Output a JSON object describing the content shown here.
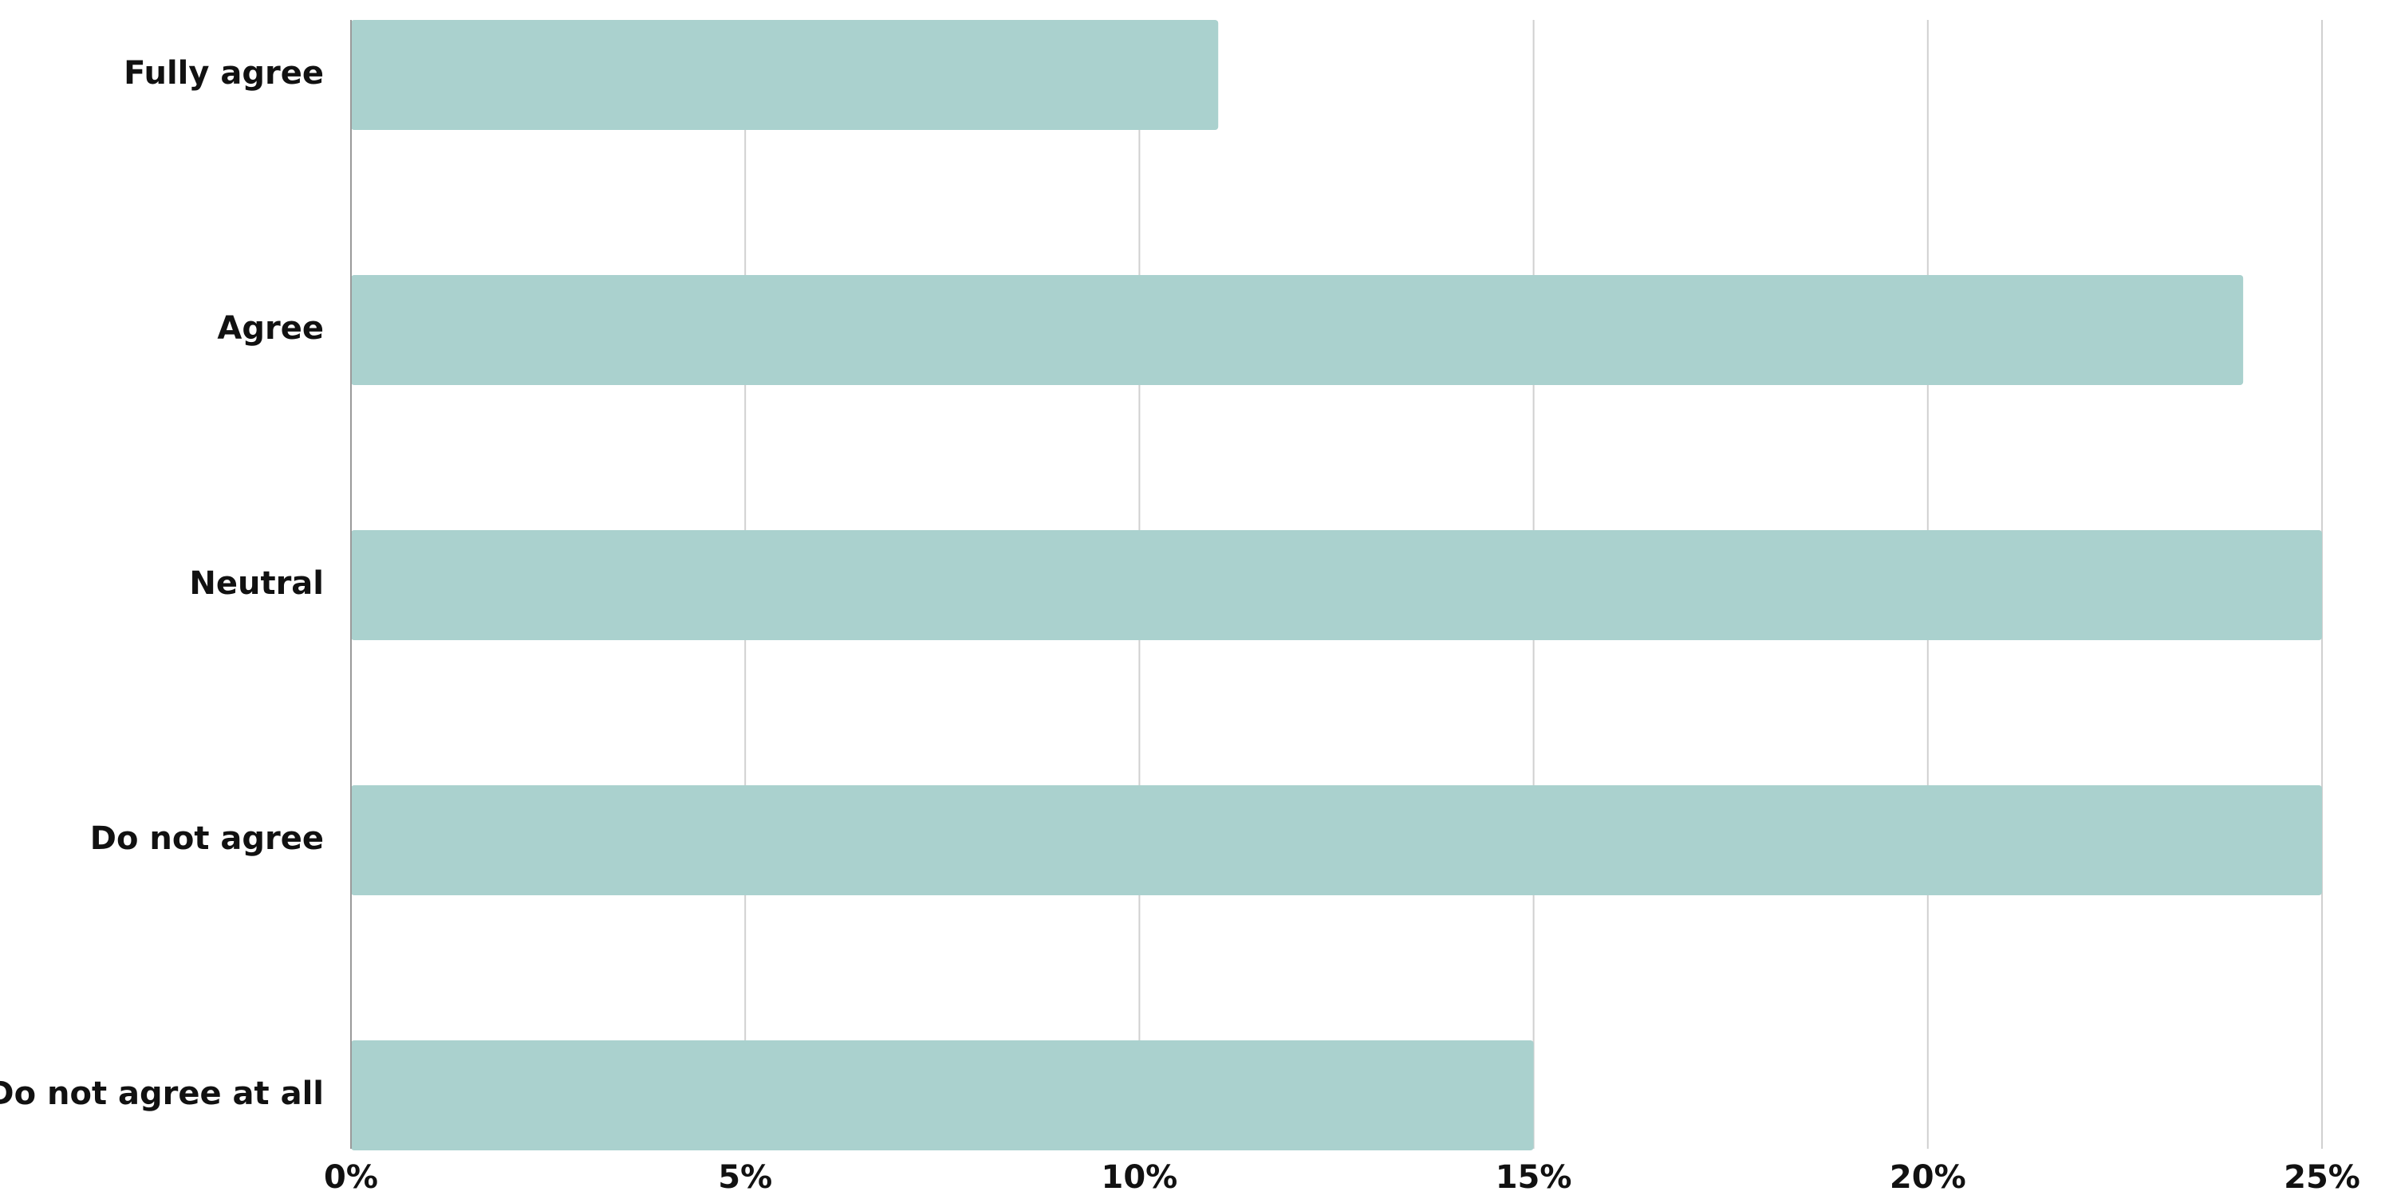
{
  "chart_data": {
    "type": "bar",
    "orientation": "horizontal",
    "categories": [
      "Fully agree",
      "Agree",
      "Neutral",
      "Do not agree",
      "Do not agree at all"
    ],
    "values": [
      11,
      24,
      25,
      25,
      15
    ],
    "color": "#aad1ce",
    "xlim": [
      0,
      25
    ],
    "xticks": [
      {
        "value": 0,
        "label": "0%"
      },
      {
        "value": 5,
        "label": "5%"
      },
      {
        "value": 10,
        "label": "10%"
      },
      {
        "value": 15,
        "label": "15%"
      },
      {
        "value": 20,
        "label": "20%"
      },
      {
        "value": 25,
        "label": "25%"
      }
    ],
    "grid": true
  }
}
